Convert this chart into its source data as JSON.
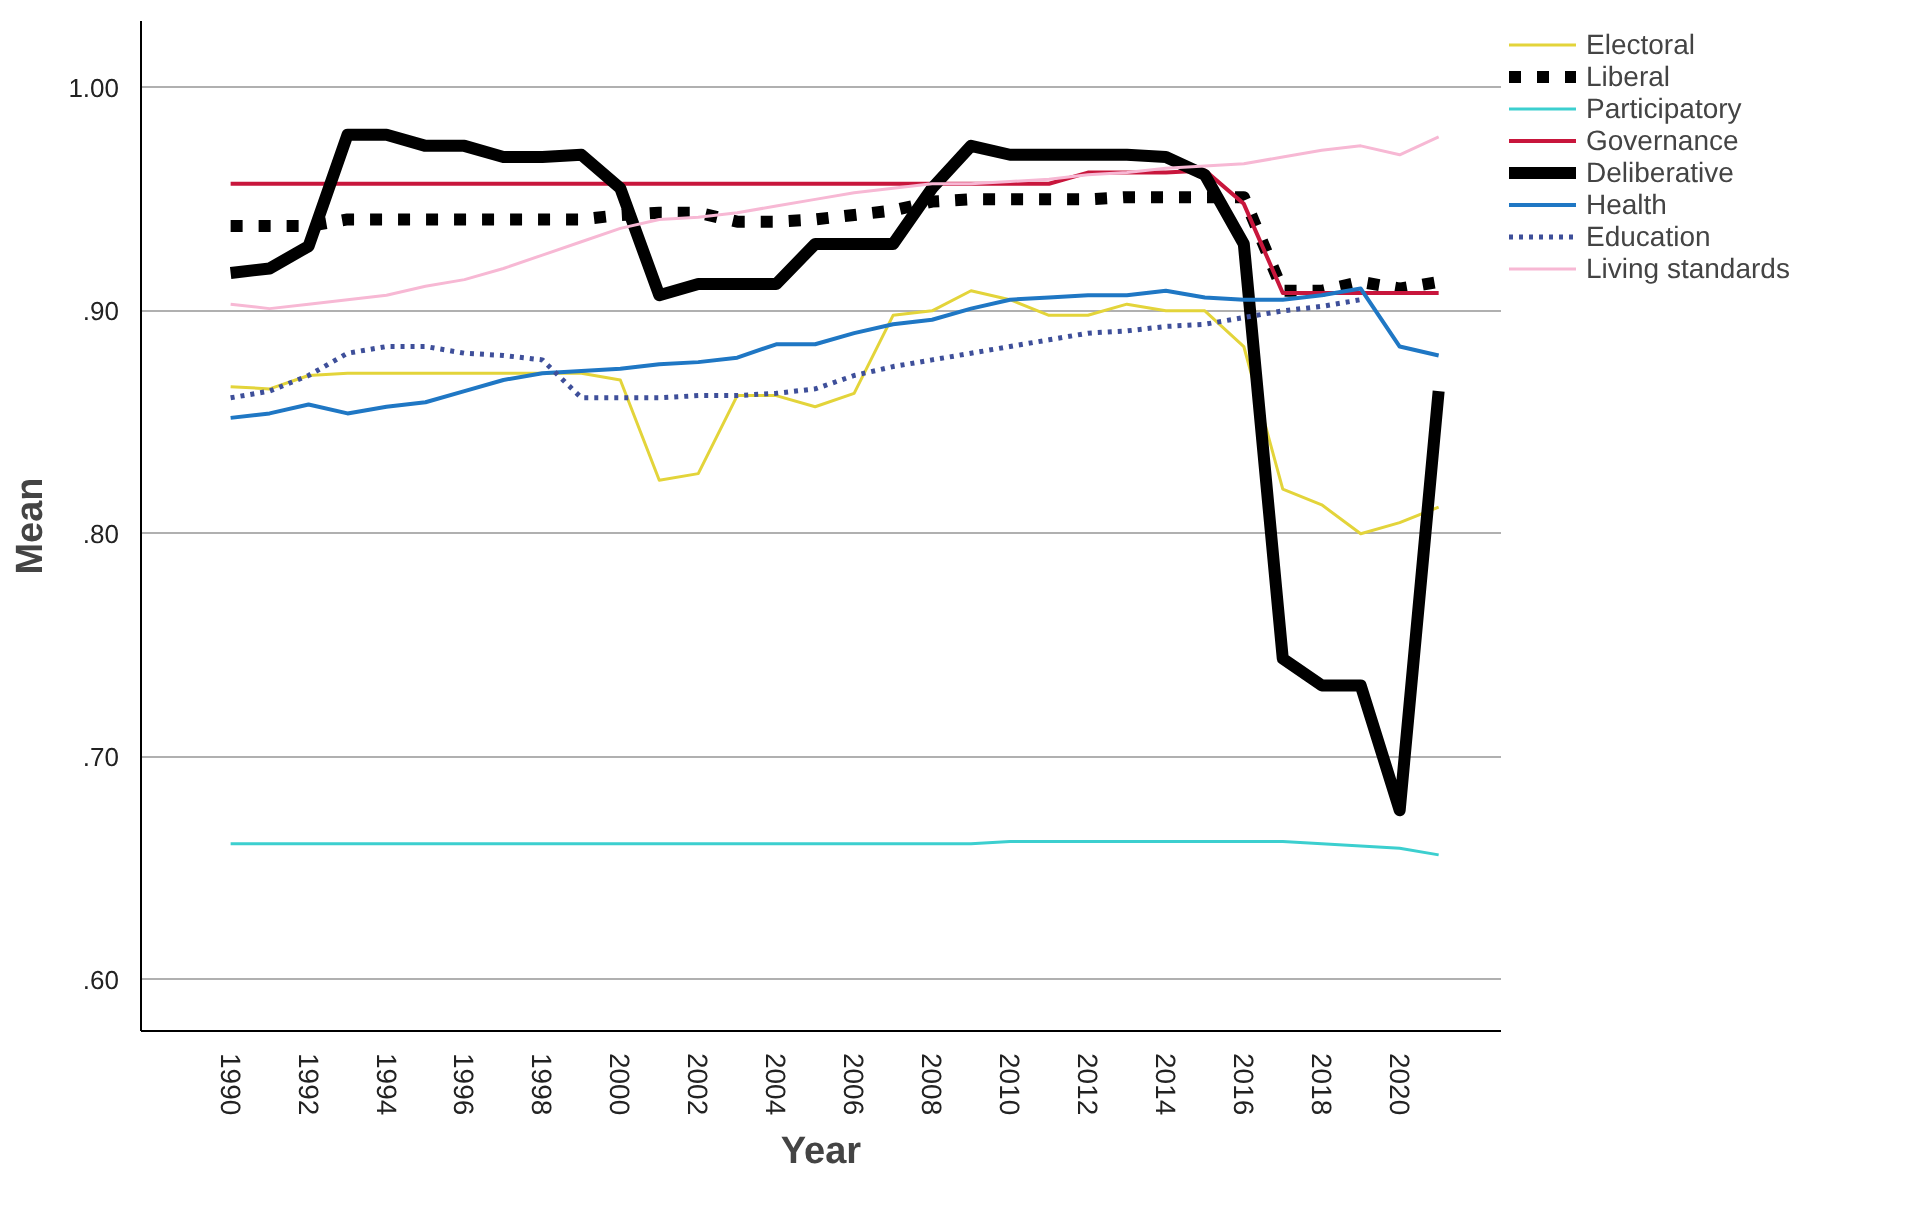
{
  "chart_data": {
    "type": "line",
    "xlabel": "Year",
    "ylabel": "Mean",
    "x": [
      1990,
      1991,
      1992,
      1993,
      1994,
      1995,
      1996,
      1997,
      1998,
      1999,
      2000,
      2001,
      2002,
      2003,
      2004,
      2005,
      2006,
      2007,
      2008,
      2009,
      2010,
      2011,
      2012,
      2013,
      2014,
      2015,
      2016,
      2017,
      2018,
      2019,
      2020,
      2021
    ],
    "xlim": [
      1987.7,
      2022.6
    ],
    "xticks": [
      1990,
      1992,
      1994,
      1996,
      1998,
      2000,
      2002,
      2004,
      2006,
      2008,
      2010,
      2012,
      2014,
      2016,
      2018,
      2020
    ],
    "ylim": [
      0.577,
      1.03
    ],
    "yticks": [
      {
        "value": 0.6,
        "label": ".60"
      },
      {
        "value": 0.7,
        "label": ".70"
      },
      {
        "value": 0.8,
        "label": ".80"
      },
      {
        "value": 0.9,
        "label": ".90"
      },
      {
        "value": 1.0,
        "label": "1.00"
      }
    ],
    "grid": "y",
    "legend": "top right",
    "marker": "none",
    "series": [
      {
        "name": "Electoral",
        "color": "#e3d43a",
        "line_style": "solid",
        "values": [
          0.866,
          0.865,
          0.871,
          0.872,
          0.872,
          0.872,
          0.872,
          0.872,
          0.872,
          0.872,
          0.869,
          0.824,
          0.827,
          0.862,
          0.862,
          0.857,
          0.863,
          0.898,
          0.9,
          0.909,
          0.905,
          0.898,
          0.898,
          0.903,
          0.9,
          0.9,
          0.884,
          0.82,
          0.813,
          0.8,
          0.805,
          0.812
        ]
      },
      {
        "name": "Liberal",
        "color": "#000000",
        "line_style": "dotted",
        "values": [
          0.938,
          0.938,
          0.938,
          0.941,
          0.941,
          0.941,
          0.941,
          0.941,
          0.941,
          0.941,
          0.943,
          0.944,
          0.944,
          0.94,
          0.94,
          0.941,
          0.943,
          0.945,
          0.949,
          0.95,
          0.95,
          0.95,
          0.95,
          0.951,
          0.951,
          0.951,
          0.951,
          0.909,
          0.909,
          0.913,
          0.91,
          0.913
        ]
      },
      {
        "name": "Participatory",
        "color": "#3ccfcf",
        "line_style": "solid",
        "values": [
          0.661,
          0.661,
          0.661,
          0.661,
          0.661,
          0.661,
          0.661,
          0.661,
          0.661,
          0.661,
          0.661,
          0.661,
          0.661,
          0.661,
          0.661,
          0.661,
          0.661,
          0.661,
          0.661,
          0.661,
          0.662,
          0.662,
          0.662,
          0.662,
          0.662,
          0.662,
          0.662,
          0.662,
          0.661,
          0.66,
          0.659,
          0.656
        ]
      },
      {
        "name": "Governance",
        "color": "#c8163c",
        "line_style": "solid",
        "values": [
          0.957,
          0.957,
          0.957,
          0.957,
          0.957,
          0.957,
          0.957,
          0.957,
          0.957,
          0.957,
          0.957,
          0.957,
          0.957,
          0.957,
          0.957,
          0.957,
          0.957,
          0.957,
          0.957,
          0.957,
          0.957,
          0.957,
          0.962,
          0.962,
          0.962,
          0.963,
          0.948,
          0.908,
          0.908,
          0.908,
          0.908,
          0.908
        ]
      },
      {
        "name": "Deliberative",
        "color": "#000000",
        "line_style": "solid",
        "values": [
          0.917,
          0.919,
          0.929,
          0.979,
          0.979,
          0.974,
          0.974,
          0.969,
          0.969,
          0.97,
          0.955,
          0.907,
          0.912,
          0.912,
          0.912,
          0.93,
          0.93,
          0.93,
          0.955,
          0.974,
          0.97,
          0.97,
          0.97,
          0.97,
          0.969,
          0.961,
          0.93,
          0.744,
          0.732,
          0.732,
          0.676,
          0.864
        ]
      },
      {
        "name": "Health",
        "color": "#1f77c4",
        "line_style": "solid",
        "values": [
          0.852,
          0.854,
          0.858,
          0.854,
          0.857,
          0.859,
          0.864,
          0.869,
          0.872,
          0.873,
          0.874,
          0.876,
          0.877,
          0.879,
          0.885,
          0.885,
          0.89,
          0.894,
          0.896,
          0.901,
          0.905,
          0.906,
          0.907,
          0.907,
          0.909,
          0.906,
          0.905,
          0.905,
          0.907,
          0.91,
          0.884,
          0.88
        ]
      },
      {
        "name": "Education",
        "color": "#3e4f9a",
        "line_style": "dotted",
        "values": [
          0.861,
          0.864,
          0.871,
          0.881,
          0.884,
          0.884,
          0.881,
          0.88,
          0.878,
          0.861,
          0.861,
          0.861,
          0.862,
          0.862,
          0.863,
          0.865,
          0.871,
          0.875,
          0.878,
          0.881,
          0.884,
          0.887,
          0.89,
          0.891,
          0.893,
          0.894,
          0.897,
          0.9,
          0.902,
          0.905,
          null,
          null
        ]
      },
      {
        "name": "Living standards",
        "color": "#f7b8d4",
        "line_style": "solid",
        "values": [
          0.903,
          0.901,
          0.903,
          0.905,
          0.907,
          0.911,
          0.914,
          0.919,
          0.925,
          0.931,
          0.937,
          0.941,
          0.942,
          0.944,
          0.947,
          0.95,
          0.953,
          0.955,
          0.957,
          0.957,
          0.958,
          0.959,
          0.961,
          0.962,
          0.964,
          0.965,
          0.966,
          0.969,
          0.972,
          0.974,
          0.97,
          0.978
        ]
      }
    ]
  }
}
